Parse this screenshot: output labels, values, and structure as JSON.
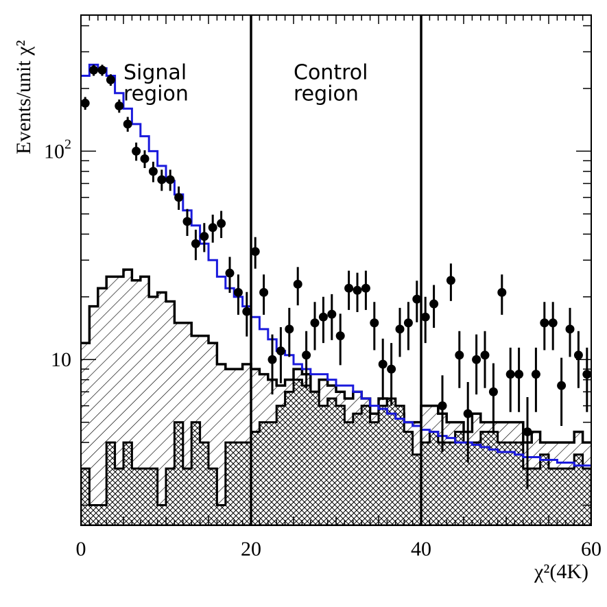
{
  "chart_data": {
    "type": "histogram",
    "xlabel": "χ²(4K)",
    "ylabel": "Events/unit χ²",
    "xlim": [
      0,
      60
    ],
    "ylim": [
      1.6,
      450
    ],
    "yscale": "log",
    "grid": false,
    "x_ticks": [
      "0",
      "20",
      "40",
      "60"
    ],
    "y_ticks": [
      {
        "value": 10,
        "base": "10",
        "exp": ""
      },
      {
        "value": 100,
        "base": "10",
        "exp": "2"
      }
    ],
    "bin_edges_start": 0,
    "bin_width": 1,
    "region_boundaries": [
      20,
      40
    ],
    "annotations": [
      {
        "lines": [
          "Signal",
          "region"
        ],
        "x": 5,
        "y_top": 270
      },
      {
        "lines": [
          "Control",
          "region"
        ],
        "x": 25,
        "y_top": 270
      }
    ],
    "series": [
      {
        "kind": "stacked-hatched-total",
        "values": [
          12.0,
          18.0,
          22.0,
          25.0,
          25.0,
          27.0,
          24.0,
          25.0,
          20.0,
          21.0,
          19.0,
          15.0,
          15.0,
          13.0,
          13.0,
          12.0,
          9.5,
          9.0,
          9.0,
          9.5,
          9.0,
          8.5,
          8.0,
          7.5,
          8.0,
          9.0,
          8.5,
          7.0,
          8.0,
          7.5,
          7.0,
          6.5,
          7.0,
          6.5,
          5.5,
          6.5,
          6.0,
          5.5,
          5.0,
          5.0,
          6.0,
          6.0,
          5.5,
          5.0,
          5.0,
          4.5,
          5.5,
          5.0,
          5.0,
          5.0,
          5.0,
          5.0,
          4.0,
          4.5,
          4.0,
          4.0,
          4.0,
          4.0,
          4.5,
          4.0
        ]
      },
      {
        "kind": "cross-hatched-component",
        "values": [
          3.0,
          2.0,
          2.0,
          4.0,
          3.0,
          4.0,
          3.0,
          3.0,
          3.0,
          2.0,
          3.0,
          5.0,
          3.0,
          5.0,
          4.0,
          3.0,
          2.0,
          4.0,
          4.0,
          4.0,
          4.5,
          5.0,
          5.0,
          6.0,
          7.0,
          8.0,
          7.5,
          7.0,
          6.0,
          6.5,
          6.0,
          5.0,
          5.5,
          6.0,
          5.0,
          6.0,
          6.5,
          6.0,
          4.5,
          3.5,
          4.0,
          4.5,
          4.0,
          4.0,
          4.5,
          4.0,
          4.0,
          4.5,
          4.5,
          4.0,
          4.0,
          4.0,
          3.0,
          3.0,
          3.5,
          3.0,
          3.0,
          3.0,
          3.5,
          3.0
        ]
      },
      {
        "kind": "blue-histogram",
        "color": "#1a1adc",
        "values": [
          230,
          260,
          250,
          230,
          190,
          160,
          135,
          118,
          100,
          85,
          72,
          62,
          52,
          44,
          36,
          30,
          25,
          22,
          20,
          18,
          16,
          14,
          12.5,
          11,
          10.5,
          9.5,
          9,
          8.5,
          8.5,
          8.0,
          7.5,
          7.5,
          7.0,
          6.5,
          6.0,
          5.8,
          5.5,
          5.2,
          5.0,
          4.8,
          4.6,
          4.5,
          4.3,
          4.2,
          4.0,
          4.0,
          3.9,
          3.8,
          3.7,
          3.6,
          3.6,
          3.5,
          3.4,
          3.4,
          3.3,
          3.3,
          3.2,
          3.2,
          3.1,
          3.1
        ]
      },
      {
        "kind": "data-points",
        "color": "#000000",
        "x": [
          0.5,
          1.5,
          2.5,
          3.5,
          4.5,
          5.5,
          6.5,
          7.5,
          8.5,
          9.5,
          10.5,
          11.5,
          12.5,
          13.5,
          14.5,
          15.5,
          16.5,
          17.5,
          18.5,
          19.5,
          20.5,
          21.5,
          22.5,
          23.5,
          24.5,
          25.5,
          26.5,
          27.5,
          28.5,
          29.5,
          30.5,
          31.5,
          32.5,
          33.5,
          34.5,
          35.5,
          36.5,
          37.5,
          38.5,
          39.5,
          40.5,
          41.5,
          42.5,
          43.5,
          44.5,
          45.5,
          46.5,
          47.5,
          48.5,
          49.5,
          50.5,
          51.5,
          52.5,
          53.5,
          54.5,
          55.5,
          56.5,
          57.5,
          58.5,
          59.5
        ],
        "y": [
          170,
          245,
          245,
          220,
          165,
          135,
          100,
          92,
          80,
          73,
          73,
          60,
          46,
          36,
          39,
          43,
          45,
          26,
          21,
          17,
          33,
          21,
          10,
          11,
          14,
          23,
          10.5,
          15,
          16,
          16.5,
          13,
          22,
          21.5,
          22,
          15,
          9.5,
          9,
          14,
          15,
          19.5,
          16,
          18.5,
          6,
          24,
          10.5,
          5.5,
          10,
          10.5,
          7,
          21,
          8.5,
          8.5,
          4.5,
          8.5,
          15,
          15,
          7.5,
          14,
          10.5,
          8.5
        ],
        "err": [
          12,
          15,
          15,
          14,
          12,
          11,
          10,
          9,
          9,
          8.5,
          8.5,
          7.7,
          6.8,
          6,
          6.2,
          6.6,
          6.7,
          5.1,
          4.6,
          4.1,
          5.7,
          4.6,
          3.2,
          3.3,
          3.7,
          4.8,
          3.2,
          3.9,
          4.0,
          4.1,
          3.6,
          4.7,
          4.6,
          4.7,
          3.9,
          3.1,
          3.0,
          3.7,
          3.9,
          4.4,
          4.0,
          4.3,
          2.4,
          4.9,
          3.2,
          2.3,
          3.2,
          3.2,
          2.6,
          4.6,
          2.9,
          2.9,
          2.1,
          2.9,
          3.9,
          3.9,
          2.7,
          3.7,
          3.2,
          2.9
        ]
      }
    ]
  }
}
